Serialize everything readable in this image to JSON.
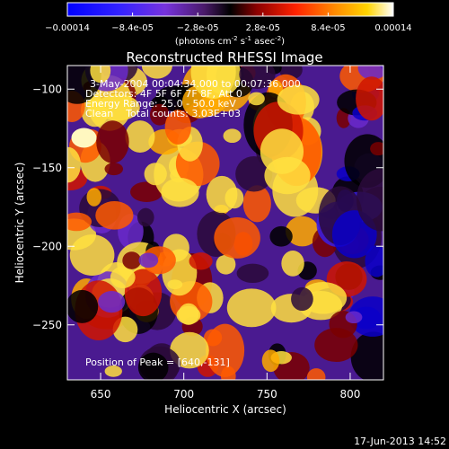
{
  "chart_data": {
    "type": "heatmap",
    "title": "Reconstructed RHESSI Image",
    "xlabel": "Heliocentric X (arcsec)",
    "ylabel": "Heliocentric Y (arcsec)",
    "xlim": [
      630,
      820
    ],
    "ylim": [
      -285,
      -85
    ],
    "x_ticks": [
      650,
      700,
      750,
      800
    ],
    "y_ticks": [
      -100,
      -150,
      -200,
      -250
    ],
    "colorbar": {
      "min": -0.00014,
      "max": 0.00014,
      "ticks": [
        "-0.00014",
        "-8.4e-05",
        "-2.8e-05",
        "2.8e-05",
        "8.4e-05",
        "0.00014"
      ],
      "label": "(photons cm",
      "label_sup1": "-2",
      "label_mid": " s",
      "label_sup2": "-1",
      "label_end": " asec",
      "label_sup3": "-2",
      "label_close": ")"
    },
    "annotations": {
      "time": "3-May-2004 00:04:34.000 to 00:07:36.000",
      "detectors": "Detectors: 4F 5F 6F 7F 8F, Att 0",
      "energy": "Energy Range: 25.0 - 50.0 keV",
      "method": "Clean    Total counts: 3.03E+03",
      "peak": "Position of Peak = [640,-131]"
    },
    "peak_position": [
      640,
      -131
    ]
  },
  "footer": {
    "date": "17-Jun-2013 14:52"
  }
}
